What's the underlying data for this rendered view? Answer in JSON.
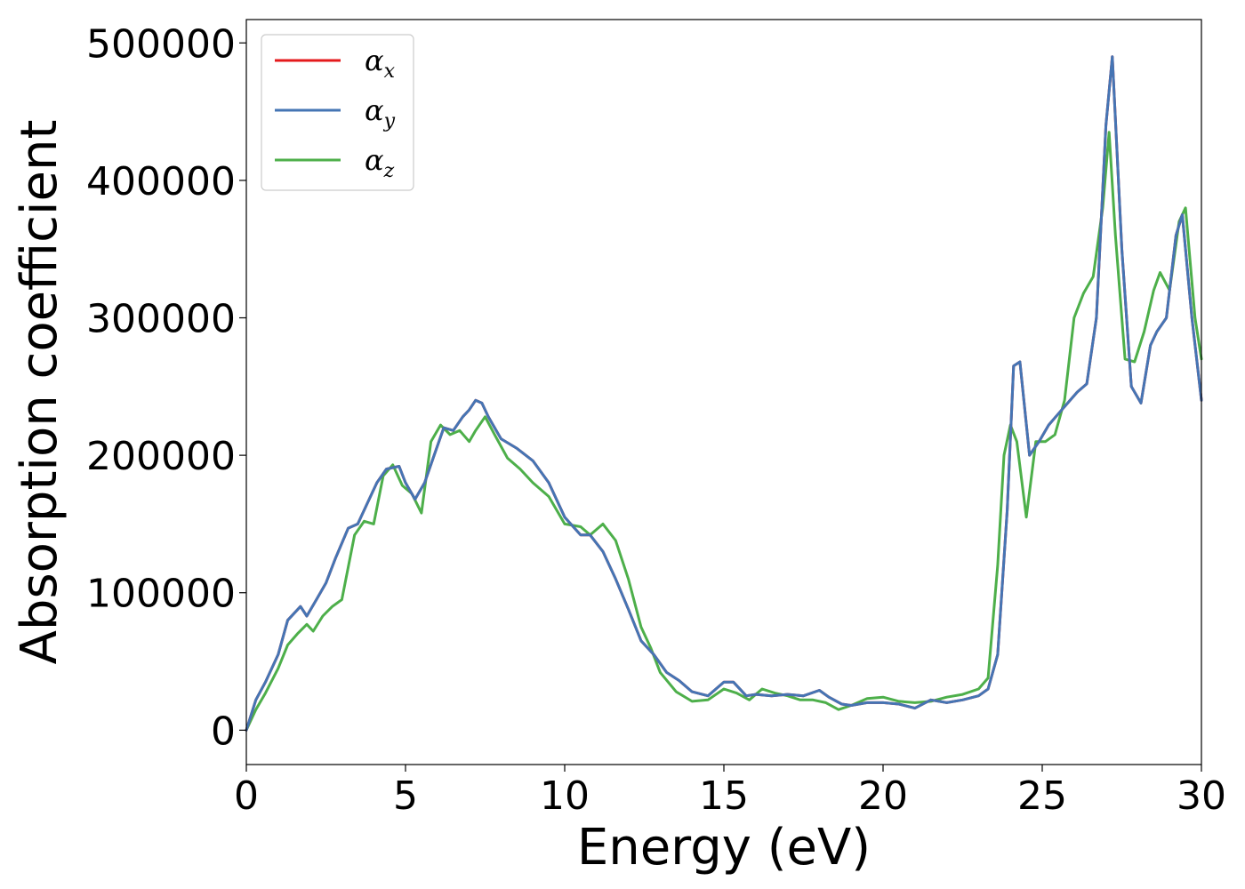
{
  "chart_data": {
    "type": "line",
    "title": "",
    "xlabel": "Energy (eV)",
    "ylabel": "Absorption coefficient",
    "xlim": [
      0,
      30
    ],
    "ylim": [
      -25000,
      517000
    ],
    "xticks": [
      0,
      5,
      10,
      15,
      20,
      25,
      30
    ],
    "xtick_labels": [
      "0",
      "5",
      "10",
      "15",
      "20",
      "25",
      "30"
    ],
    "yticks": [
      0,
      100000,
      200000,
      300000,
      400000,
      500000
    ],
    "ytick_labels": [
      "0",
      "100000",
      "200000",
      "300000",
      "400000",
      "500000"
    ],
    "grid": false,
    "legend_position": "top-left",
    "series": [
      {
        "name": "α_x",
        "symbol": "α",
        "subscript": "x",
        "color": "#e41a1c",
        "x": [
          0,
          0.3,
          0.6,
          1.0,
          1.3,
          1.7,
          1.9,
          2.2,
          2.5,
          2.8,
          3.2,
          3.5,
          3.8,
          4.1,
          4.4,
          4.8,
          5.0,
          5.3,
          5.6,
          5.9,
          6.2,
          6.5,
          6.8,
          7.0,
          7.2,
          7.4,
          7.6,
          8.0,
          8.5,
          9.0,
          9.5,
          10.0,
          10.5,
          10.8,
          11.2,
          11.6,
          12.0,
          12.4,
          12.8,
          13.2,
          13.6,
          14.0,
          14.5,
          15.0,
          15.3,
          15.7,
          16.0,
          16.5,
          17.0,
          17.5,
          18.0,
          18.3,
          18.7,
          19.0,
          19.5,
          20.0,
          20.5,
          21.0,
          21.5,
          22.0,
          22.5,
          23.0,
          23.3,
          23.6,
          23.9,
          24.1,
          24.3,
          24.6,
          24.9,
          25.2,
          25.5,
          25.8,
          26.1,
          26.4,
          26.7,
          27.0,
          27.2,
          27.5,
          27.8,
          28.1,
          28.4,
          28.6,
          28.9,
          29.2,
          29.4,
          29.7,
          30.0
        ],
        "y": [
          0,
          22000,
          35000,
          55000,
          80000,
          90000,
          83000,
          95000,
          107000,
          125000,
          147000,
          150000,
          165000,
          180000,
          190000,
          192000,
          180000,
          168000,
          180000,
          200000,
          220000,
          218000,
          228000,
          233000,
          240000,
          238000,
          228000,
          212000,
          205000,
          196000,
          180000,
          155000,
          142000,
          142000,
          130000,
          110000,
          88000,
          65000,
          55000,
          42000,
          36000,
          28000,
          25000,
          35000,
          35000,
          25000,
          26000,
          25000,
          26000,
          25000,
          29000,
          24000,
          19000,
          18000,
          20000,
          20000,
          19000,
          16000,
          22000,
          20000,
          22000,
          25000,
          30000,
          55000,
          160000,
          265000,
          268000,
          200000,
          210000,
          222000,
          230000,
          238000,
          246000,
          252000,
          300000,
          440000,
          490000,
          350000,
          250000,
          238000,
          280000,
          290000,
          300000,
          360000,
          375000,
          300000,
          240000
        ]
      },
      {
        "name": "α_y",
        "symbol": "α",
        "subscript": "y",
        "color": "#4575b4",
        "x": [
          0,
          0.3,
          0.6,
          1.0,
          1.3,
          1.7,
          1.9,
          2.2,
          2.5,
          2.8,
          3.2,
          3.5,
          3.8,
          4.1,
          4.4,
          4.8,
          5.0,
          5.3,
          5.6,
          5.9,
          6.2,
          6.5,
          6.8,
          7.0,
          7.2,
          7.4,
          7.6,
          8.0,
          8.5,
          9.0,
          9.5,
          10.0,
          10.5,
          10.8,
          11.2,
          11.6,
          12.0,
          12.4,
          12.8,
          13.2,
          13.6,
          14.0,
          14.5,
          15.0,
          15.3,
          15.7,
          16.0,
          16.5,
          17.0,
          17.5,
          18.0,
          18.3,
          18.7,
          19.0,
          19.5,
          20.0,
          20.5,
          21.0,
          21.5,
          22.0,
          22.5,
          23.0,
          23.3,
          23.6,
          23.9,
          24.1,
          24.3,
          24.6,
          24.9,
          25.2,
          25.5,
          25.8,
          26.1,
          26.4,
          26.7,
          27.0,
          27.2,
          27.5,
          27.8,
          28.1,
          28.4,
          28.6,
          28.9,
          29.2,
          29.4,
          29.7,
          30.0
        ],
        "y": [
          0,
          22000,
          35000,
          55000,
          80000,
          90000,
          83000,
          95000,
          107000,
          125000,
          147000,
          150000,
          165000,
          180000,
          190000,
          192000,
          180000,
          168000,
          180000,
          200000,
          220000,
          218000,
          228000,
          233000,
          240000,
          238000,
          228000,
          212000,
          205000,
          196000,
          180000,
          155000,
          142000,
          142000,
          130000,
          110000,
          88000,
          65000,
          55000,
          42000,
          36000,
          28000,
          25000,
          35000,
          35000,
          25000,
          26000,
          25000,
          26000,
          25000,
          29000,
          24000,
          19000,
          18000,
          20000,
          20000,
          19000,
          16000,
          22000,
          20000,
          22000,
          25000,
          30000,
          55000,
          160000,
          265000,
          268000,
          200000,
          210000,
          222000,
          230000,
          238000,
          246000,
          252000,
          300000,
          440000,
          490000,
          350000,
          250000,
          238000,
          280000,
          290000,
          300000,
          360000,
          375000,
          300000,
          240000
        ]
      },
      {
        "name": "α_z",
        "symbol": "α",
        "subscript": "z",
        "color": "#4daf4a",
        "x": [
          0,
          0.3,
          0.6,
          1.0,
          1.3,
          1.6,
          1.9,
          2.1,
          2.4,
          2.7,
          3.0,
          3.4,
          3.7,
          4.0,
          4.3,
          4.6,
          4.9,
          5.2,
          5.5,
          5.8,
          6.1,
          6.4,
          6.7,
          7.0,
          7.2,
          7.5,
          7.8,
          8.2,
          8.6,
          9.0,
          9.5,
          10.0,
          10.5,
          10.8,
          11.2,
          11.6,
          12.0,
          12.4,
          12.7,
          13.0,
          13.5,
          14.0,
          14.5,
          15.0,
          15.4,
          15.8,
          16.2,
          16.6,
          17.0,
          17.4,
          17.8,
          18.2,
          18.6,
          19.0,
          19.5,
          20.0,
          20.5,
          21.0,
          21.5,
          22.0,
          22.5,
          23.0,
          23.3,
          23.6,
          23.8,
          24.0,
          24.2,
          24.5,
          24.8,
          25.1,
          25.4,
          25.7,
          26.0,
          26.3,
          26.6,
          26.9,
          27.1,
          27.3,
          27.6,
          27.9,
          28.2,
          28.5,
          28.7,
          29.0,
          29.3,
          29.5,
          29.8,
          30.0
        ],
        "y": [
          0,
          15000,
          27000,
          45000,
          62000,
          70000,
          77000,
          72000,
          83000,
          90000,
          95000,
          142000,
          152000,
          150000,
          185000,
          193000,
          178000,
          172000,
          158000,
          210000,
          222000,
          215000,
          218000,
          210000,
          218000,
          228000,
          215000,
          198000,
          190000,
          180000,
          170000,
          150000,
          148000,
          142000,
          150000,
          138000,
          110000,
          75000,
          60000,
          42000,
          28000,
          21000,
          22000,
          30000,
          27000,
          22000,
          30000,
          27000,
          25000,
          22000,
          22000,
          20000,
          15000,
          18000,
          23000,
          24000,
          21000,
          20000,
          21000,
          24000,
          26000,
          30000,
          38000,
          120000,
          200000,
          222000,
          210000,
          155000,
          210000,
          210000,
          215000,
          240000,
          300000,
          318000,
          330000,
          380000,
          435000,
          360000,
          270000,
          268000,
          290000,
          320000,
          333000,
          320000,
          370000,
          380000,
          300000,
          270000
        ]
      }
    ]
  }
}
